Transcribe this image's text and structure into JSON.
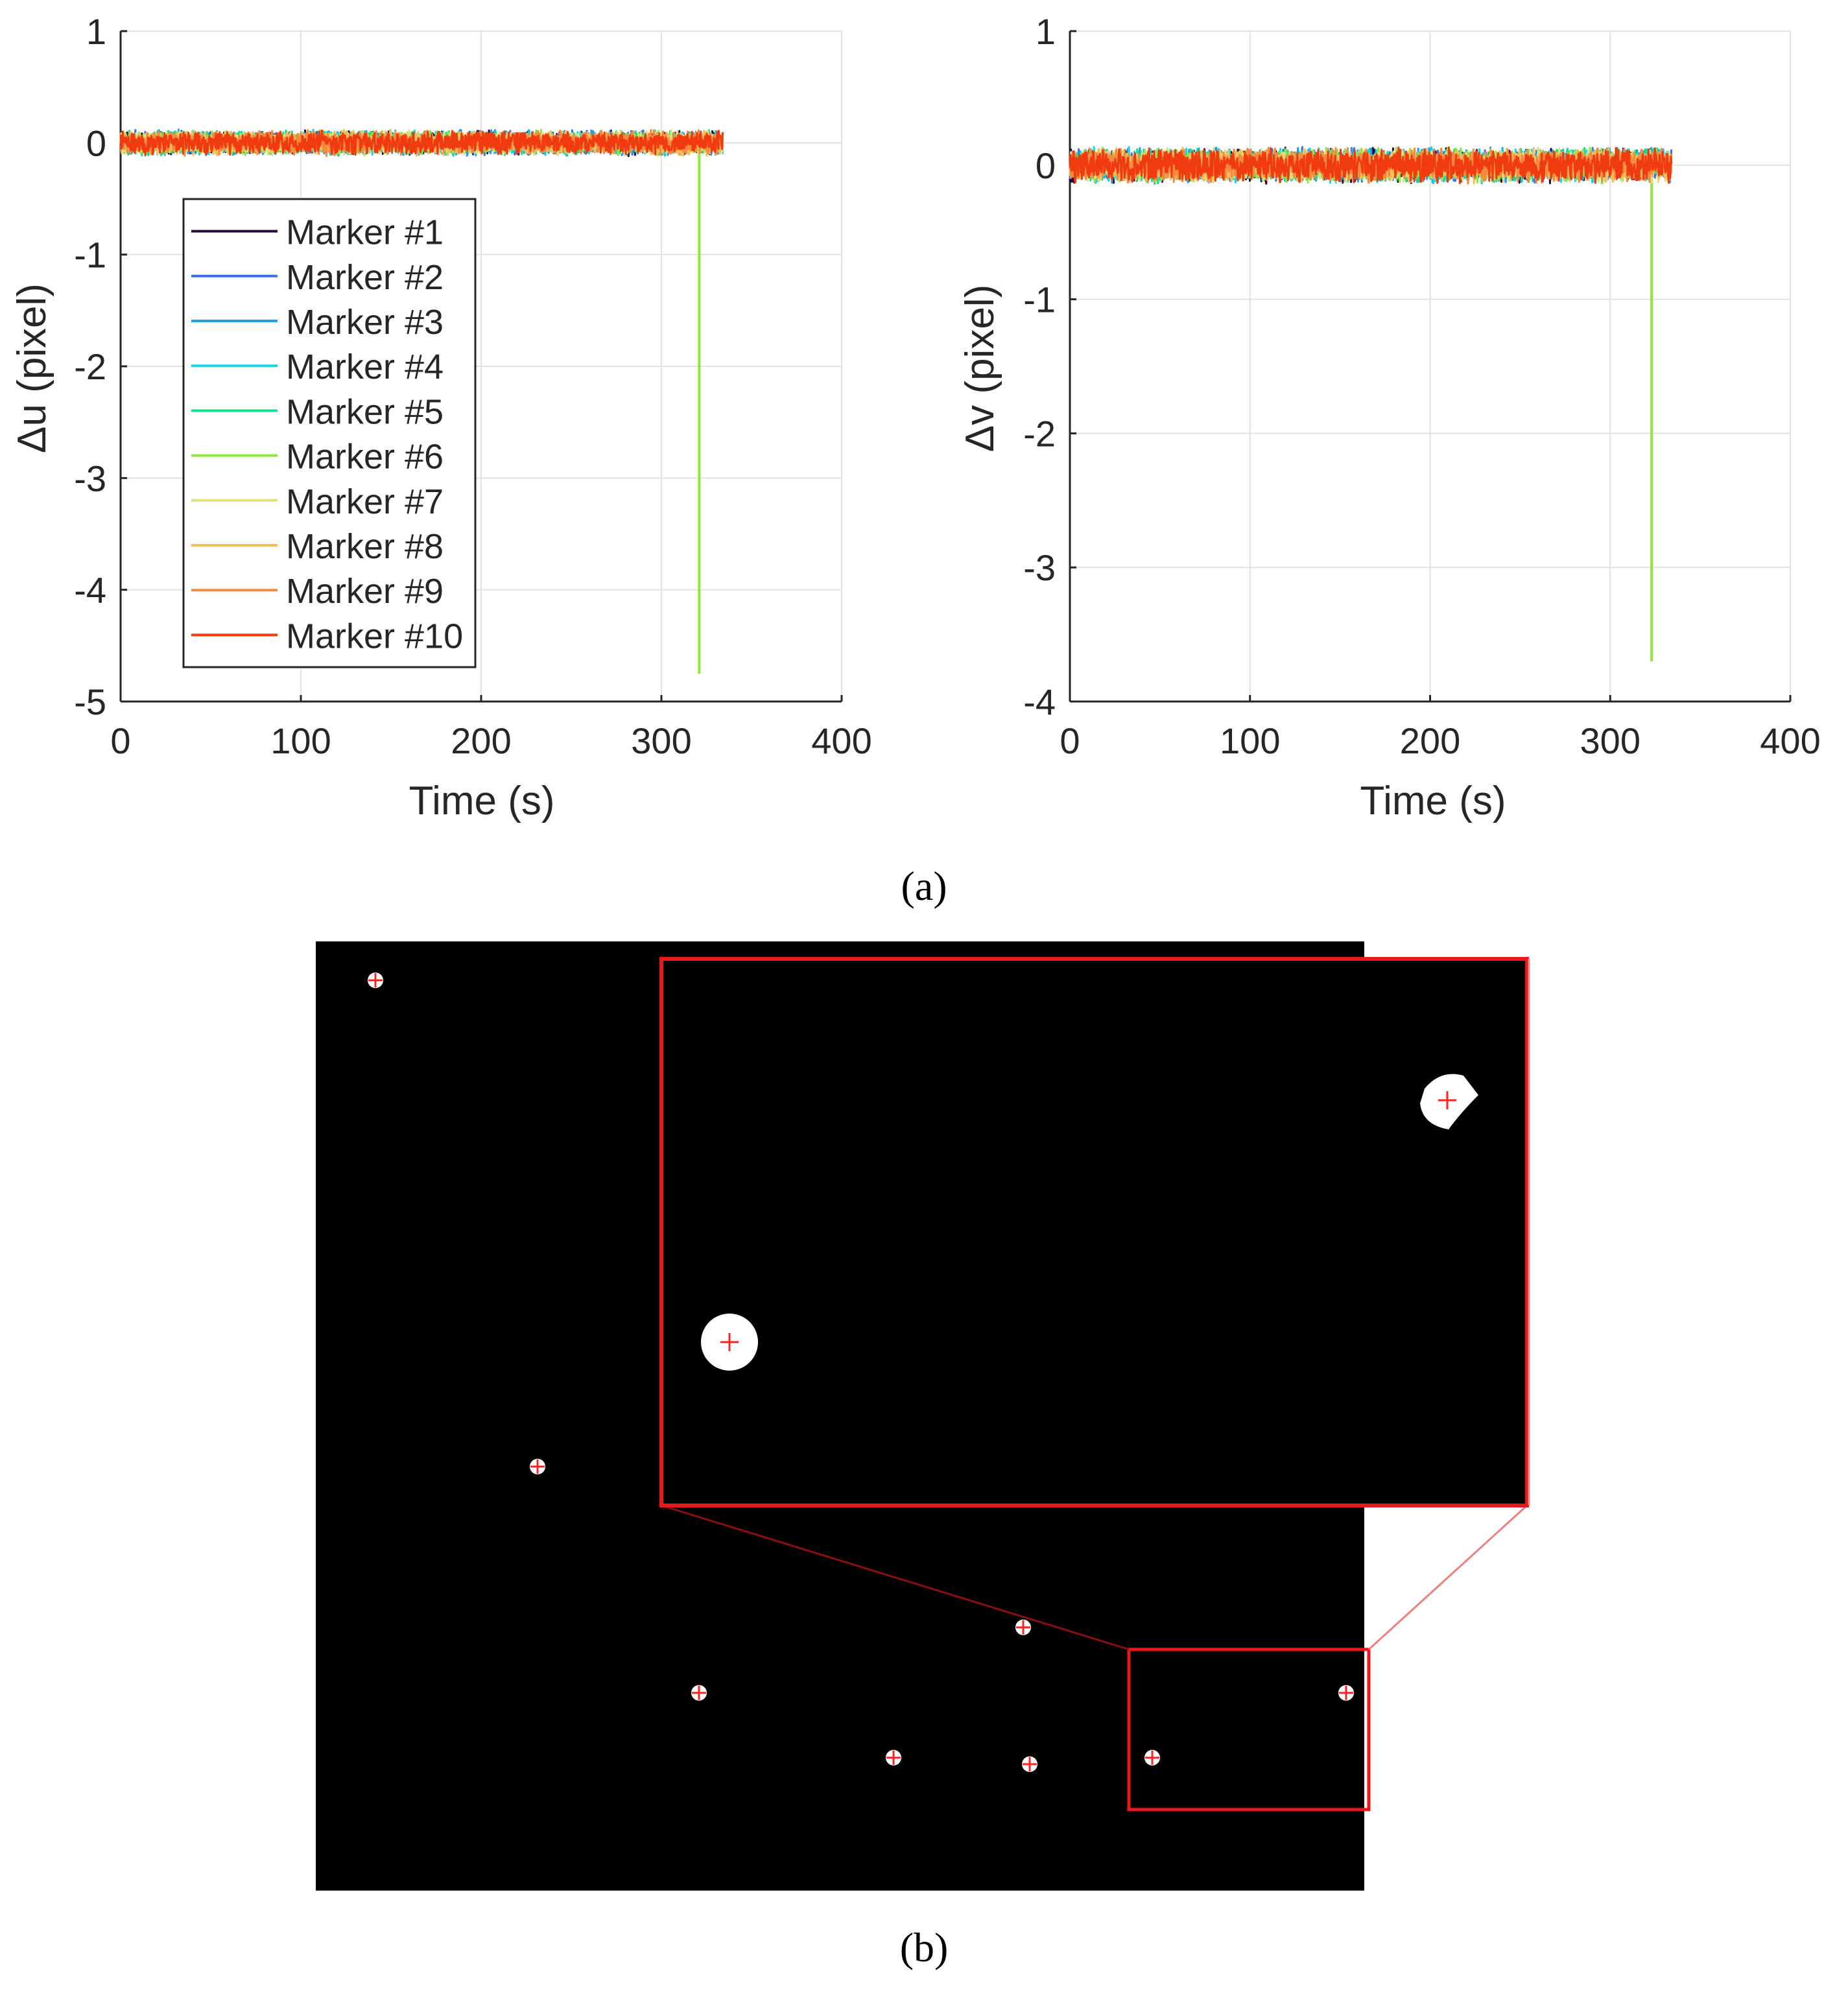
{
  "chart_data": [
    {
      "type": "line",
      "xlabel": "Time (s)",
      "ylabel": "Δu (pixel)",
      "xlim": [
        0,
        400
      ],
      "ylim": [
        -5,
        1
      ],
      "xticks": [
        0,
        100,
        200,
        300,
        400
      ],
      "yticks": [
        1,
        0,
        -1,
        -2,
        -3,
        -4,
        -5
      ],
      "grid": true,
      "legend_position": "left",
      "noise_amplitude": 0.12,
      "series": [
        {
          "name": "Marker #1",
          "color": "#2a0a3a",
          "x_range": [
            0,
            334
          ],
          "baseline": 0
        },
        {
          "name": "Marker #2",
          "color": "#3f6fe0",
          "x_range": [
            0,
            334
          ],
          "baseline": 0
        },
        {
          "name": "Marker #3",
          "color": "#1aa3e8",
          "x_range": [
            0,
            334
          ],
          "baseline": 0
        },
        {
          "name": "Marker #4",
          "color": "#16d6e6",
          "x_range": [
            0,
            334
          ],
          "baseline": 0
        },
        {
          "name": "Marker #5",
          "color": "#17e08a",
          "x_range": [
            0,
            334
          ],
          "baseline": 0
        },
        {
          "name": "Marker #6",
          "color": "#8ee83c",
          "x_range": [
            0,
            334
          ],
          "baseline": 0,
          "spike": {
            "x": 321,
            "y": -4.75
          }
        },
        {
          "name": "Marker #7",
          "color": "#dfe07a",
          "x_range": [
            0,
            334
          ],
          "baseline": 0
        },
        {
          "name": "Marker #8",
          "color": "#f6bb5a",
          "x_range": [
            0,
            334
          ],
          "baseline": 0
        },
        {
          "name": "Marker #9",
          "color": "#f58a3c",
          "x_range": [
            0,
            334
          ],
          "baseline": 0
        },
        {
          "name": "Marker #10",
          "color": "#f03a10",
          "x_range": [
            0,
            334
          ],
          "baseline": 0
        }
      ]
    },
    {
      "type": "line",
      "xlabel": "Time (s)",
      "ylabel": "Δv (pixel)",
      "xlim": [
        0,
        400
      ],
      "ylim": [
        -4,
        1
      ],
      "xticks": [
        0,
        100,
        200,
        300,
        400
      ],
      "yticks": [
        1,
        0,
        -1,
        -2,
        -3,
        -4
      ],
      "grid": true,
      "noise_amplitude": 0.14,
      "series": [
        {
          "color": "#2a0a3a",
          "x_range": [
            0,
            334
          ],
          "baseline": 0
        },
        {
          "color": "#3f6fe0",
          "x_range": [
            0,
            334
          ],
          "baseline": 0
        },
        {
          "color": "#1aa3e8",
          "x_range": [
            0,
            334
          ],
          "baseline": 0
        },
        {
          "color": "#16d6e6",
          "x_range": [
            0,
            334
          ],
          "baseline": 0
        },
        {
          "color": "#17e08a",
          "x_range": [
            0,
            334
          ],
          "baseline": 0
        },
        {
          "color": "#8ee83c",
          "x_range": [
            0,
            334
          ],
          "baseline": 0,
          "spike": {
            "x": 323,
            "y": -3.7
          }
        },
        {
          "color": "#dfe07a",
          "x_range": [
            0,
            334
          ],
          "baseline": 0
        },
        {
          "color": "#f6bb5a",
          "x_range": [
            0,
            334
          ],
          "baseline": 0
        },
        {
          "color": "#f58a3c",
          "x_range": [
            0,
            334
          ],
          "baseline": 0
        },
        {
          "color": "#f03a10",
          "x_range": [
            0,
            334
          ],
          "baseline": 0
        }
      ]
    }
  ],
  "captions": {
    "a": "(a)",
    "b": "(b)"
  },
  "marker_image": {
    "background": "#000000",
    "marker_color": "#ffffff",
    "crosshair_color": "#ff2020",
    "highlight_color": "#e8181c",
    "marker_count": 8,
    "zoom_marker_count": 2
  }
}
